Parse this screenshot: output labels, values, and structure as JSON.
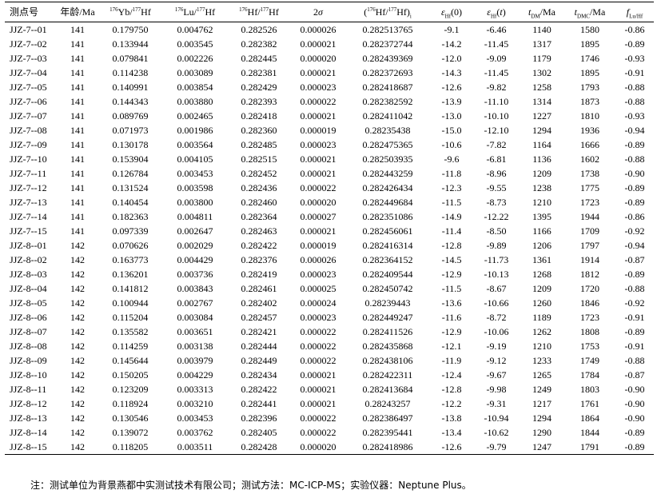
{
  "headers": [
    "测点号",
    "年龄/Ma",
    "176Yb/177Hf",
    "176Lu/177Hf",
    "176Hf/177Hf",
    "2σ",
    "(176Hf/177Hf)i",
    "εHf(0)",
    "εHf(t)",
    "tDM/Ma",
    "tDMC/Ma",
    "fLu/Hf"
  ],
  "rows": [
    [
      "JJZ-7--01",
      "141",
      "0.179750",
      "0.004762",
      "0.282526",
      "0.000026",
      "0.282513765",
      "-9.1",
      "-6.46",
      "1140",
      "1580",
      "-0.86"
    ],
    [
      "JJZ-7--02",
      "141",
      "0.133944",
      "0.003545",
      "0.282382",
      "0.000021",
      "0.282372744",
      "-14.2",
      "-11.45",
      "1317",
      "1895",
      "-0.89"
    ],
    [
      "JJZ-7--03",
      "141",
      "0.079841",
      "0.002226",
      "0.282445",
      "0.000020",
      "0.282439369",
      "-12.0",
      "-9.09",
      "1179",
      "1746",
      "-0.93"
    ],
    [
      "JJZ-7--04",
      "141",
      "0.114238",
      "0.003089",
      "0.282381",
      "0.000021",
      "0.282372693",
      "-14.3",
      "-11.45",
      "1302",
      "1895",
      "-0.91"
    ],
    [
      "JJZ-7--05",
      "141",
      "0.140991",
      "0.003854",
      "0.282429",
      "0.000023",
      "0.282418687",
      "-12.6",
      "-9.82",
      "1258",
      "1793",
      "-0.88"
    ],
    [
      "JJZ-7--06",
      "141",
      "0.144343",
      "0.003880",
      "0.282393",
      "0.000022",
      "0.282382592",
      "-13.9",
      "-11.10",
      "1314",
      "1873",
      "-0.88"
    ],
    [
      "JJZ-7--07",
      "141",
      "0.089769",
      "0.002465",
      "0.282418",
      "0.000021",
      "0.282411042",
      "-13.0",
      "-10.10",
      "1227",
      "1810",
      "-0.93"
    ],
    [
      "JJZ-7--08",
      "141",
      "0.071973",
      "0.001986",
      "0.282360",
      "0.000019",
      "0.28235438",
      "-15.0",
      "-12.10",
      "1294",
      "1936",
      "-0.94"
    ],
    [
      "JJZ-7--09",
      "141",
      "0.130178",
      "0.003564",
      "0.282485",
      "0.000023",
      "0.282475365",
      "-10.6",
      "-7.82",
      "1164",
      "1666",
      "-0.89"
    ],
    [
      "JJZ-7--10",
      "141",
      "0.153904",
      "0.004105",
      "0.282515",
      "0.000021",
      "0.282503935",
      "-9.6",
      "-6.81",
      "1136",
      "1602",
      "-0.88"
    ],
    [
      "JJZ-7--11",
      "141",
      "0.126784",
      "0.003453",
      "0.282452",
      "0.000021",
      "0.282443259",
      "-11.8",
      "-8.96",
      "1209",
      "1738",
      "-0.90"
    ],
    [
      "JJZ-7--12",
      "141",
      "0.131524",
      "0.003598",
      "0.282436",
      "0.000022",
      "0.282426434",
      "-12.3",
      "-9.55",
      "1238",
      "1775",
      "-0.89"
    ],
    [
      "JJZ-7--13",
      "141",
      "0.140454",
      "0.003800",
      "0.282460",
      "0.000020",
      "0.282449684",
      "-11.5",
      "-8.73",
      "1210",
      "1723",
      "-0.89"
    ],
    [
      "JJZ-7--14",
      "141",
      "0.182363",
      "0.004811",
      "0.282364",
      "0.000027",
      "0.282351086",
      "-14.9",
      "-12.22",
      "1395",
      "1944",
      "-0.86"
    ],
    [
      "JJZ-7--15",
      "141",
      "0.097339",
      "0.002647",
      "0.282463",
      "0.000021",
      "0.282456061",
      "-11.4",
      "-8.50",
      "1166",
      "1709",
      "-0.92"
    ],
    [
      "JJZ-8--01",
      "142",
      "0.070626",
      "0.002029",
      "0.282422",
      "0.000019",
      "0.282416314",
      "-12.8",
      "-9.89",
      "1206",
      "1797",
      "-0.94"
    ],
    [
      "JJZ-8--02",
      "142",
      "0.163773",
      "0.004429",
      "0.282376",
      "0.000026",
      "0.282364152",
      "-14.5",
      "-11.73",
      "1361",
      "1914",
      "-0.87"
    ],
    [
      "JJZ-8--03",
      "142",
      "0.136201",
      "0.003736",
      "0.282419",
      "0.000023",
      "0.282409544",
      "-12.9",
      "-10.13",
      "1268",
      "1812",
      "-0.89"
    ],
    [
      "JJZ-8--04",
      "142",
      "0.141812",
      "0.003843",
      "0.282461",
      "0.000025",
      "0.282450742",
      "-11.5",
      "-8.67",
      "1209",
      "1720",
      "-0.88"
    ],
    [
      "JJZ-8--05",
      "142",
      "0.100944",
      "0.002767",
      "0.282402",
      "0.000024",
      "0.28239443",
      "-13.6",
      "-10.66",
      "1260",
      "1846",
      "-0.92"
    ],
    [
      "JJZ-8--06",
      "142",
      "0.115204",
      "0.003084",
      "0.282457",
      "0.000023",
      "0.282449247",
      "-11.6",
      "-8.72",
      "1189",
      "1723",
      "-0.91"
    ],
    [
      "JJZ-8--07",
      "142",
      "0.135582",
      "0.003651",
      "0.282421",
      "0.000022",
      "0.282411526",
      "-12.9",
      "-10.06",
      "1262",
      "1808",
      "-0.89"
    ],
    [
      "JJZ-8--08",
      "142",
      "0.114259",
      "0.003138",
      "0.282444",
      "0.000022",
      "0.282435868",
      "-12.1",
      "-9.19",
      "1210",
      "1753",
      "-0.91"
    ],
    [
      "JJZ-8--09",
      "142",
      "0.145644",
      "0.003979",
      "0.282449",
      "0.000022",
      "0.282438106",
      "-11.9",
      "-9.12",
      "1233",
      "1749",
      "-0.88"
    ],
    [
      "JJZ-8--10",
      "142",
      "0.150205",
      "0.004229",
      "0.282434",
      "0.000021",
      "0.282422311",
      "-12.4",
      "-9.67",
      "1265",
      "1784",
      "-0.87"
    ],
    [
      "JJZ-8--11",
      "142",
      "0.123209",
      "0.003313",
      "0.282422",
      "0.000021",
      "0.282413684",
      "-12.8",
      "-9.98",
      "1249",
      "1803",
      "-0.90"
    ],
    [
      "JJZ-8--12",
      "142",
      "0.118924",
      "0.003210",
      "0.282441",
      "0.000021",
      "0.28243257",
      "-12.2",
      "-9.31",
      "1217",
      "1761",
      "-0.90"
    ],
    [
      "JJZ-8--13",
      "142",
      "0.130546",
      "0.003453",
      "0.282396",
      "0.000022",
      "0.282386497",
      "-13.8",
      "-10.94",
      "1294",
      "1864",
      "-0.90"
    ],
    [
      "JJZ-8--14",
      "142",
      "0.139072",
      "0.003762",
      "0.282405",
      "0.000022",
      "0.282395441",
      "-13.4",
      "-10.62",
      "1290",
      "1844",
      "-0.89"
    ],
    [
      "JJZ-8--15",
      "142",
      "0.118205",
      "0.003511",
      "0.282428",
      "0.000020",
      "0.282418986",
      "-12.6",
      "-9.79",
      "1247",
      "1791",
      "-0.89"
    ]
  ],
  "note": "注：测试单位为背景燕都中实测试技术有限公司；测试方法：MC-ICP-MS；实验仪器：Neptune Plus。"
}
